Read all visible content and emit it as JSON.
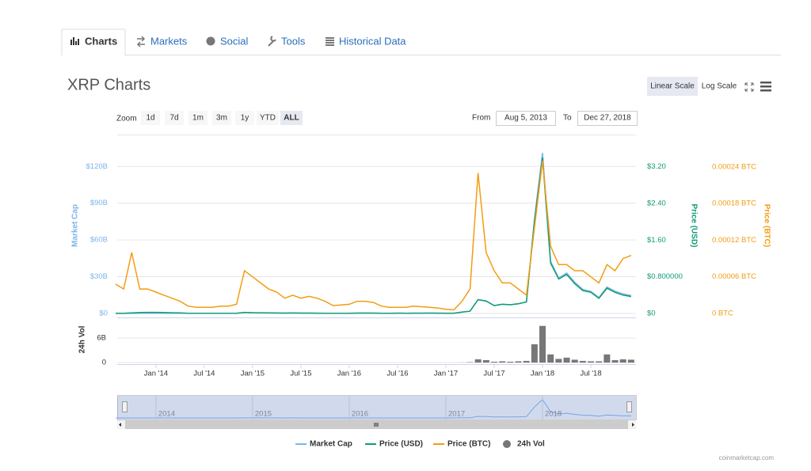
{
  "tabs": [
    "Charts",
    "Markets",
    "Social",
    "Tools",
    "Historical Data"
  ],
  "title": "XRP Charts",
  "scale_buttons": [
    "Linear Scale",
    "Log Scale"
  ],
  "zoom": {
    "label": "Zoom",
    "buttons": [
      "1d",
      "7d",
      "1m",
      "3m",
      "1y",
      "YTD",
      "ALL"
    ],
    "active": "ALL"
  },
  "range": {
    "from_label": "From",
    "from": "Aug 5, 2013",
    "to_label": "To",
    "to": "Dec 27, 2018"
  },
  "chart_data": {
    "type": "line",
    "grid": true,
    "legend": "bottom",
    "ylabel": "Market Cap",
    "y2label": "Price (USD)",
    "y3label": "Price (BTC)",
    "vol_label": "24h Vol",
    "x": [
      "2013-08",
      "2013-09",
      "2013-10",
      "2013-11",
      "2013-12",
      "2014-01",
      "2014-02",
      "2014-03",
      "2014-04",
      "2014-05",
      "2014-06",
      "2014-07",
      "2014-08",
      "2014-09",
      "2014-10",
      "2014-11",
      "2014-12",
      "2015-01",
      "2015-02",
      "2015-03",
      "2015-04",
      "2015-05",
      "2015-06",
      "2015-07",
      "2015-08",
      "2015-09",
      "2015-10",
      "2015-11",
      "2015-12",
      "2016-01",
      "2016-02",
      "2016-03",
      "2016-04",
      "2016-05",
      "2016-06",
      "2016-07",
      "2016-08",
      "2016-09",
      "2016-10",
      "2016-11",
      "2016-12",
      "2017-01",
      "2017-02",
      "2017-03",
      "2017-04",
      "2017-05",
      "2017-06",
      "2017-07",
      "2017-08",
      "2017-09",
      "2017-10",
      "2017-11",
      "2017-12",
      "2018-01",
      "2018-02",
      "2018-03",
      "2018-04",
      "2018-05",
      "2018-06",
      "2018-07",
      "2018-08",
      "2018-09",
      "2018-10",
      "2018-11",
      "2018-12"
    ],
    "xticks": [
      {
        "value": "2014-01",
        "label": "Jan '14"
      },
      {
        "value": "2014-07",
        "label": "Jul '14"
      },
      {
        "value": "2015-01",
        "label": "Jan '15"
      },
      {
        "value": "2015-07",
        "label": "Jul '15"
      },
      {
        "value": "2016-01",
        "label": "Jan '16"
      },
      {
        "value": "2016-07",
        "label": "Jul '16"
      },
      {
        "value": "2017-01",
        "label": "Jan '17"
      },
      {
        "value": "2017-07",
        "label": "Jul '17"
      },
      {
        "value": "2018-01",
        "label": "Jan '18"
      },
      {
        "value": "2018-07",
        "label": "Jul '18"
      }
    ],
    "ylim": [
      0,
      146000000000.0
    ],
    "yticks": [
      {
        "value": 0,
        "label": "$0"
      },
      {
        "value": 30000000000,
        "label": "$30B"
      },
      {
        "value": 60000000000,
        "label": "$60B"
      },
      {
        "value": 90000000000,
        "label": "$90B"
      },
      {
        "value": 120000000000,
        "label": "$120B"
      }
    ],
    "y2lim": [
      0,
      3.9
    ],
    "y2ticks": [
      {
        "value": 0,
        "label": "$0"
      },
      {
        "value": 0.8,
        "label": "$0.800000"
      },
      {
        "value": 1.6,
        "label": "$1.60"
      },
      {
        "value": 2.4,
        "label": "$2.40"
      },
      {
        "value": 3.2,
        "label": "$3.20"
      }
    ],
    "y3lim": [
      0,
      0.000293
    ],
    "y3ticks": [
      {
        "value": 0,
        "label": "0 BTC"
      },
      {
        "value": 6e-05,
        "label": "0.00006 BTC"
      },
      {
        "value": 0.00012,
        "label": "0.00012 BTC"
      },
      {
        "value": 0.00018,
        "label": "0.00018 BTC"
      },
      {
        "value": 0.00024,
        "label": "0.00024 BTC"
      }
    ],
    "vol_ylim": [
      0,
      10500000000.0
    ],
    "vol_yticks": [
      0,
      {
        "value": 6000000000,
        "label": "6B"
      }
    ],
    "series": [
      {
        "name": "Market Cap",
        "color": "#7cb5ec",
        "axis": "y",
        "values": [
          40000000.0,
          40000000.0,
          90000000.0,
          150000000.0,
          200000000.0,
          200000000.0,
          160000000.0,
          120000000.0,
          100000000.0,
          100000000.0,
          150000000.0,
          150000000.0,
          150000000.0,
          150000000.0,
          150000000.0,
          180000000.0,
          750000000.0,
          580000000.0,
          480000000.0,
          380000000.0,
          320000000.0,
          260000000.0,
          360000000.0,
          260000000.0,
          260000000.0,
          220000000.0,
          160000000.0,
          130000000.0,
          200000000.0,
          210000000.0,
          280000000.0,
          320000000.0,
          280000000.0,
          210000000.0,
          210000000.0,
          250000000.0,
          210000000.0,
          250000000.0,
          250000000.0,
          280000000.0,
          250000000.0,
          230000000.0,
          230000000.0,
          1100000000.0,
          1900000000.0,
          11400000000.0,
          10300000000.0,
          6500000000.0,
          7600000000.0,
          7200000000.0,
          8000000000.0,
          9500000000.0,
          77000000000.0,
          131000000000.0,
          42500000000.0,
          29000000000.0,
          33000000000.0,
          25500000000.0,
          19600000000.0,
          18000000000.0,
          13000000000.0,
          21600000000.0,
          18200000000.0,
          16000000000.0,
          14600000000.0
        ]
      },
      {
        "name": "Price (USD)",
        "color": "#129b77",
        "axis": "y2",
        "values": [
          0.005,
          0.005,
          0.012,
          0.02,
          0.025,
          0.025,
          0.02,
          0.015,
          0.012,
          0.006,
          0.005,
          0.005,
          0.005,
          0.005,
          0.005,
          0.006,
          0.024,
          0.018,
          0.015,
          0.012,
          0.01,
          0.008,
          0.011,
          0.008,
          0.008,
          0.007,
          0.005,
          0.004,
          0.006,
          0.006,
          0.008,
          0.009,
          0.008,
          0.006,
          0.006,
          0.007,
          0.006,
          0.007,
          0.007,
          0.008,
          0.007,
          0.006,
          0.006,
          0.03,
          0.05,
          0.3,
          0.27,
          0.17,
          0.2,
          0.19,
          0.21,
          0.25,
          2.0,
          3.4,
          1.1,
          0.75,
          0.85,
          0.65,
          0.5,
          0.46,
          0.33,
          0.55,
          0.46,
          0.4,
          0.37
        ]
      },
      {
        "name": "Price (BTC)",
        "color": "#f39c12",
        "axis": "y3",
        "values": [
          4.8e-05,
          4e-05,
          0.0001,
          4e-05,
          4e-05,
          3.5e-05,
          3e-05,
          2.5e-05,
          2e-05,
          1.2e-05,
          1e-05,
          1e-05,
          1e-05,
          1.2e-05,
          1.2e-05,
          1.5e-05,
          7e-05,
          6e-05,
          5e-05,
          4e-05,
          3.5e-05,
          2.5e-05,
          3e-05,
          2.5e-05,
          2.8e-05,
          2.5e-05,
          2e-05,
          1.3e-05,
          1.4e-05,
          1.5e-05,
          2e-05,
          2e-05,
          1.8e-05,
          1.2e-05,
          1e-05,
          1e-05,
          1e-05,
          1.2e-05,
          1.1e-05,
          1e-05,
          9e-06,
          7e-06,
          6e-06,
          2e-05,
          4e-05,
          0.00023,
          0.0001,
          7e-05,
          5e-05,
          5e-05,
          4e-05,
          3e-05,
          0.00014,
          0.00025,
          0.00011,
          8e-05,
          8e-05,
          7e-05,
          7e-05,
          6e-05,
          5e-05,
          8e-05,
          7e-05,
          9e-05,
          9.5e-05
        ]
      },
      {
        "name": "24h Vol",
        "color": "#777777",
        "axis": "vol",
        "values": [
          1000000.0,
          1000000.0,
          2000000.0,
          3000000.0,
          3000000.0,
          3000000.0,
          2000000.0,
          2000000.0,
          1000000.0,
          1000000.0,
          1000000.0,
          1000000.0,
          1000000.0,
          1000000.0,
          1000000.0,
          1000000.0,
          3000000.0,
          2000000.0,
          1000000.0,
          1000000.0,
          1000000.0,
          1000000.0,
          1000000.0,
          1000000.0,
          1000000.0,
          1000000.0,
          1000000.0,
          1000000.0,
          1000000.0,
          1000000.0,
          2000000.0,
          2000000.0,
          1000000.0,
          1000000.0,
          1000000.0,
          1000000.0,
          1000000.0,
          1000000.0,
          1000000.0,
          1000000.0,
          1000000.0,
          1000000.0,
          1000000.0,
          20000000.0,
          100000000.0,
          800000000.0,
          600000000.0,
          200000000.0,
          300000000.0,
          200000000.0,
          300000000.0,
          400000000.0,
          4500000000.0,
          9000000000.0,
          2000000000.0,
          900000000.0,
          1200000000.0,
          700000000.0,
          400000000.0,
          300000000.0,
          300000000.0,
          2000000000.0,
          600000000.0,
          800000000.0,
          700000000.0
        ]
      }
    ]
  },
  "navigator": {
    "labels": [
      "2014",
      "2015",
      "2016",
      "2017",
      "2018"
    ]
  },
  "credit": "coinmarketcap.com"
}
